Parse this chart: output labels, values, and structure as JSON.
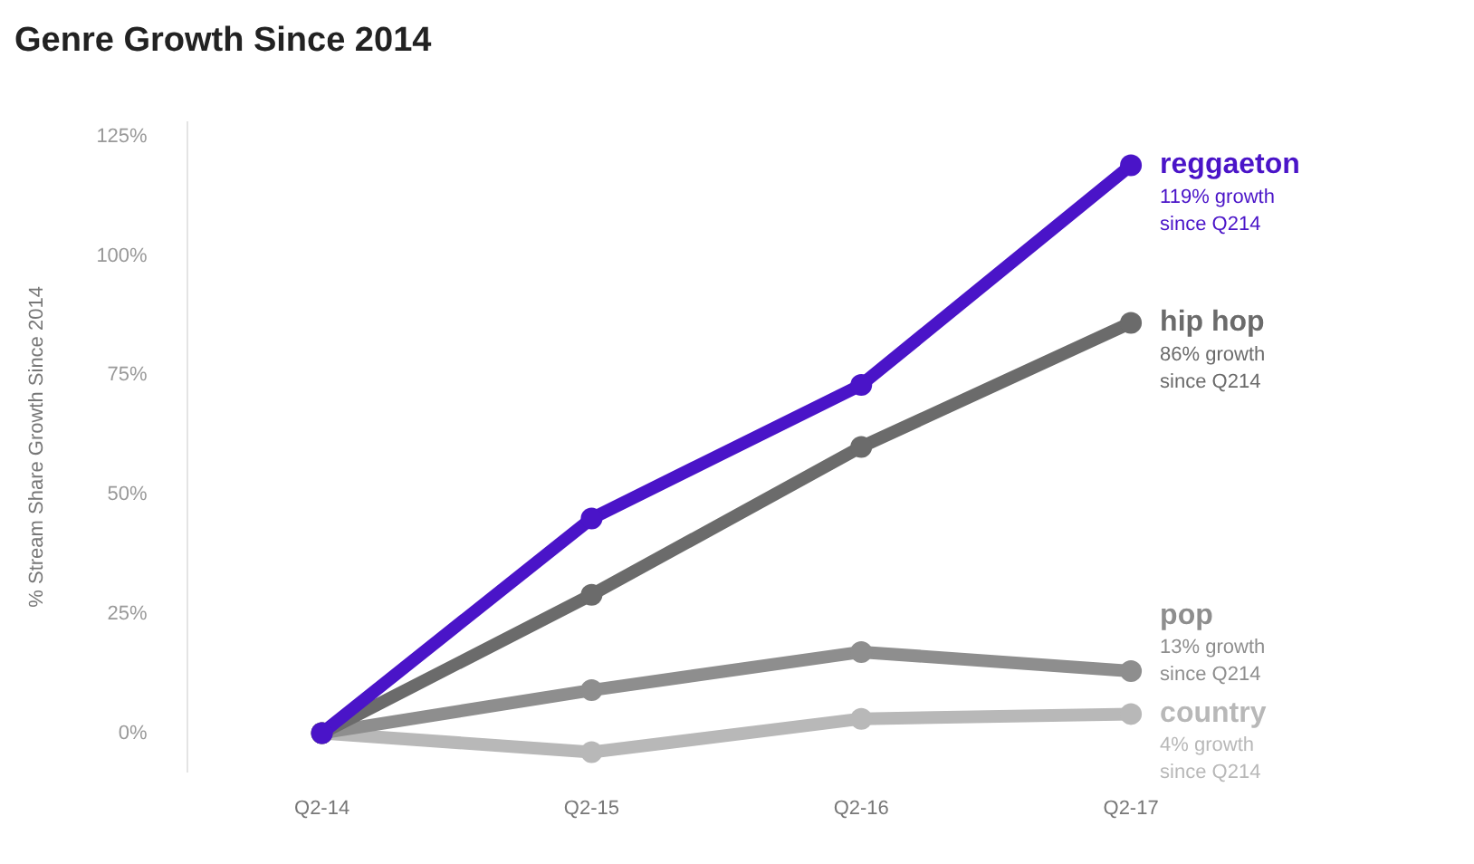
{
  "chart_data": {
    "type": "line",
    "title": "Genre Growth Since 2014",
    "ylabel": "% Stream Share Growth Since 2014",
    "categories": [
      "Q2-14",
      "Q2-15",
      "Q2-16",
      "Q2-17"
    ],
    "series": [
      {
        "name": "reggaeton",
        "color": "#4a14c8",
        "values": [
          0,
          45,
          73,
          119
        ]
      },
      {
        "name": "hip hop",
        "color": "#6b6b6b",
        "values": [
          0,
          29,
          60,
          86
        ]
      },
      {
        "name": "pop",
        "color": "#8e8e8e",
        "values": [
          0,
          9,
          17,
          13
        ]
      },
      {
        "name": "country",
        "color": "#b8b8b8",
        "values": [
          0,
          -4,
          3,
          4
        ]
      }
    ],
    "annotations": [
      {
        "text": "119% growth since Q214",
        "x": "Q2-17",
        "y": 119
      },
      {
        "text": "86% growth since Q214",
        "x": "Q2-17",
        "y": 86
      },
      {
        "text": "13% growth since Q214",
        "x": "Q2-17",
        "y": 13
      },
      {
        "text": "4% growth since Q214",
        "x": "Q2-17",
        "y": 4
      }
    ],
    "ylim": [
      -8,
      128
    ],
    "yticks": [
      {
        "value": 0,
        "label": "0%"
      },
      {
        "value": 25,
        "label": "25%"
      },
      {
        "value": 50,
        "label": "50%"
      },
      {
        "value": 75,
        "label": "75%"
      },
      {
        "value": 100,
        "label": "100%"
      },
      {
        "value": 125,
        "label": "125%"
      }
    ],
    "grid": false,
    "legend": false,
    "marker": "circle",
    "line_style": "solid"
  }
}
